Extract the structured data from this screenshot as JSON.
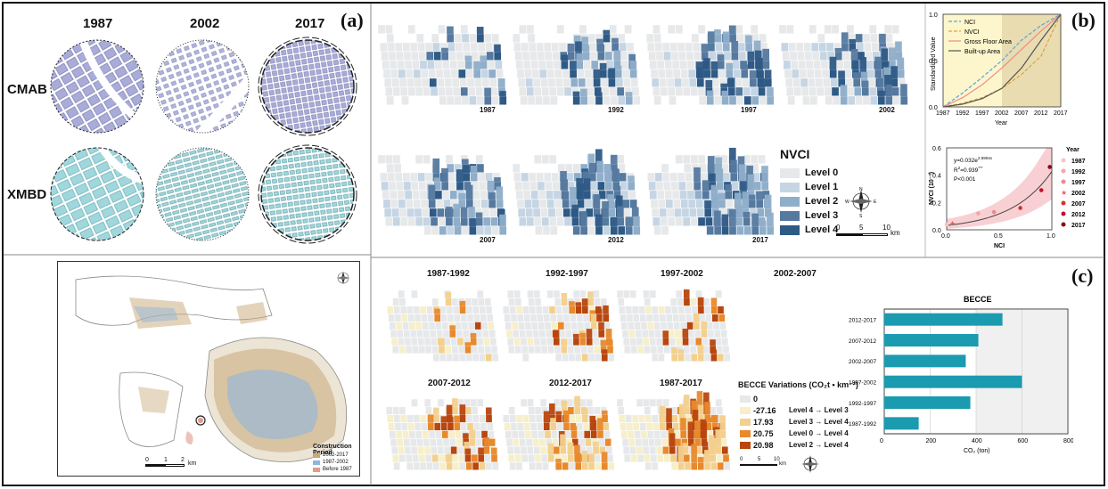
{
  "panel_a": {
    "label": "(a)",
    "years": [
      "1987",
      "2002",
      "2017"
    ],
    "rows": [
      "CMAB",
      "XMBD"
    ],
    "colors": {
      "cmab": "#a9acd9",
      "xmbd": "#9fd7dc"
    },
    "map": {
      "legend_title": "Construction Period",
      "legend_items": [
        {
          "label": "2002-2017",
          "color": "#c8a878"
        },
        {
          "label": "1987-2002",
          "color": "#8fb6dc"
        },
        {
          "label": "Before 1987",
          "color": "#e49a8a"
        }
      ],
      "scale_ticks": [
        "0",
        "1",
        "2"
      ],
      "scale_unit": "km",
      "compass": [
        "N",
        "S",
        "W",
        "E"
      ]
    }
  },
  "panel_b": {
    "label": "(b)",
    "map_years": [
      "1987",
      "1992",
      "1997",
      "2002",
      "2007",
      "2012",
      "2017"
    ],
    "legend_title": "NVCI",
    "levels": [
      {
        "label": "Level 0",
        "color": "#e6e8ea"
      },
      {
        "label": "Level 1",
        "color": "#c5d5e4"
      },
      {
        "label": "Level 2",
        "color": "#8faeca"
      },
      {
        "label": "Level 3",
        "color": "#55799f"
      },
      {
        "label": "Level 4",
        "color": "#2e5a86"
      }
    ],
    "scale_ticks": [
      "0",
      "5",
      "10"
    ],
    "scale_unit": "km",
    "compass": [
      "N",
      "S",
      "W",
      "E"
    ],
    "line_chart": {
      "ylabel": "Standardized Value",
      "xlabel": "Year",
      "x_ticks": [
        "1987",
        "1992",
        "1997",
        "2002",
        "2007",
        "2012",
        "2017"
      ],
      "y_ticks": [
        "0.0",
        "0.5",
        "1.0"
      ],
      "legend": [
        {
          "label": "NCI",
          "color": "#5aa3e0",
          "dash": "4,2"
        },
        {
          "label": "NVCI",
          "color": "#e0a23a",
          "dash": "4,2"
        },
        {
          "label": "Gross Floor Area",
          "color": "#f08a8a",
          "dash": ""
        },
        {
          "label": "Built-up Area",
          "color": "#555555",
          "dash": ""
        }
      ]
    },
    "scatter_chart": {
      "ylabel": "NVCI (10⁻³)",
      "xlabel": "NCI",
      "x_ticks": [
        "0.0",
        "0.5",
        "1.0"
      ],
      "y_ticks": [
        "0.0",
        "0.2",
        "0.4",
        "0.6"
      ],
      "eq_main": "y=0.032e",
      "eq_exp": "2.5904x",
      "r2_main": "R",
      "r2_sup": "2",
      "r2_rest": "=0.939",
      "r2_sig": "***",
      "p_text": "P<0.001",
      "legend_title": "Year",
      "legend": [
        {
          "label": "1987",
          "color": "#f5c6c6",
          "shape": "circle"
        },
        {
          "label": "1992",
          "color": "#f0a8a8",
          "shape": "circle"
        },
        {
          "label": "1997",
          "color": "#ea8a8a",
          "shape": "circle"
        },
        {
          "label": "2002",
          "color": "#e06060",
          "shape": "star"
        },
        {
          "label": "2007",
          "color": "#d83030",
          "shape": "circle"
        },
        {
          "label": "2012",
          "color": "#c01030",
          "shape": "circle"
        },
        {
          "label": "2017",
          "color": "#8a0a1a",
          "shape": "circle"
        }
      ]
    }
  },
  "panel_c": {
    "label": "(c)",
    "map_periods": [
      "1987-1992",
      "1992-1997",
      "1997-2002",
      "2002-2007",
      "2007-2012",
      "2012-2017",
      "1987-2017"
    ],
    "legend_title": "BECCE Variations (CO₂t • km⁻²)",
    "legend_items": [
      {
        "value": "0",
        "desc": "",
        "color": "#e6e8ea"
      },
      {
        "value": "-27.16",
        "desc": "Level 4 → Level 3",
        "color": "#f6efc9"
      },
      {
        "value": "17.93",
        "desc": "Level 3 → Level 4",
        "color": "#f3d08e"
      },
      {
        "value": "20.75",
        "desc": "Level 0 → Level 4",
        "color": "#e8892c"
      },
      {
        "value": "20.98",
        "desc": "Level 2 → Level 4",
        "color": "#b8460e"
      }
    ],
    "scale_ticks": [
      "0",
      "5",
      "10"
    ],
    "scale_unit": "km",
    "compass": [
      "N",
      "S",
      "W",
      "E"
    ]
  },
  "chart_data": [
    {
      "type": "line",
      "x": [
        1987,
        1992,
        1997,
        2002,
        2007,
        2012,
        2017
      ],
      "xlabel": "Year",
      "ylabel": "Standardized Value",
      "ylim": [
        0,
        1
      ],
      "shaded_regions": [
        {
          "x_from": 1987,
          "x_to": 2002,
          "color": "#fdf6cc"
        },
        {
          "x_from": 2002,
          "x_to": 2017,
          "color": "#e8dcb0"
        }
      ],
      "series": [
        {
          "name": "NCI",
          "color": "#5aa3e0",
          "values": [
            0.0,
            0.15,
            0.32,
            0.5,
            0.72,
            0.88,
            1.0
          ]
        },
        {
          "name": "NVCI",
          "color": "#e0a23a",
          "values": [
            0.0,
            0.04,
            0.1,
            0.2,
            0.35,
            0.55,
            1.0
          ]
        },
        {
          "name": "Gross Floor Area",
          "color": "#f08a8a",
          "values": [
            0.0,
            0.1,
            0.24,
            0.42,
            0.62,
            0.82,
            1.0
          ]
        },
        {
          "name": "Built-up Area",
          "color": "#555555",
          "values": [
            0.0,
            0.03,
            0.09,
            0.2,
            0.42,
            0.72,
            1.0
          ]
        }
      ]
    },
    {
      "type": "scatter",
      "xlabel": "NCI",
      "ylabel": "NVCI (10⁻³)",
      "xlim": [
        0,
        1
      ],
      "ylim": [
        0,
        0.6
      ],
      "fit": {
        "a": 0.032,
        "b": 2.5904
      },
      "points": [
        {
          "year": "1987",
          "x": 0.0,
          "y": 0.04
        },
        {
          "year": "1992",
          "x": 0.3,
          "y": 0.12
        },
        {
          "year": "1997",
          "x": 0.45,
          "y": 0.13
        },
        {
          "year": "2002",
          "x": 0.05,
          "y": 0.05
        },
        {
          "year": "2007",
          "x": 0.7,
          "y": 0.16
        },
        {
          "year": "2012",
          "x": 0.9,
          "y": 0.29
        },
        {
          "year": "2017",
          "x": 0.98,
          "y": 0.46
        }
      ]
    },
    {
      "type": "bar",
      "orientation": "horizontal",
      "title": "BECCE",
      "xlabel": "CO₂ (ton)",
      "xlim": [
        0,
        800
      ],
      "x_ticks": [
        "0",
        "200",
        "400",
        "600",
        "800"
      ],
      "color": "#1a9bb0",
      "categories": [
        "2012-2017",
        "2007-2012",
        "2002-2007",
        "1997-2002",
        "1992-1997",
        "1987-1992"
      ],
      "values": [
        515,
        410,
        355,
        600,
        375,
        150
      ]
    }
  ]
}
